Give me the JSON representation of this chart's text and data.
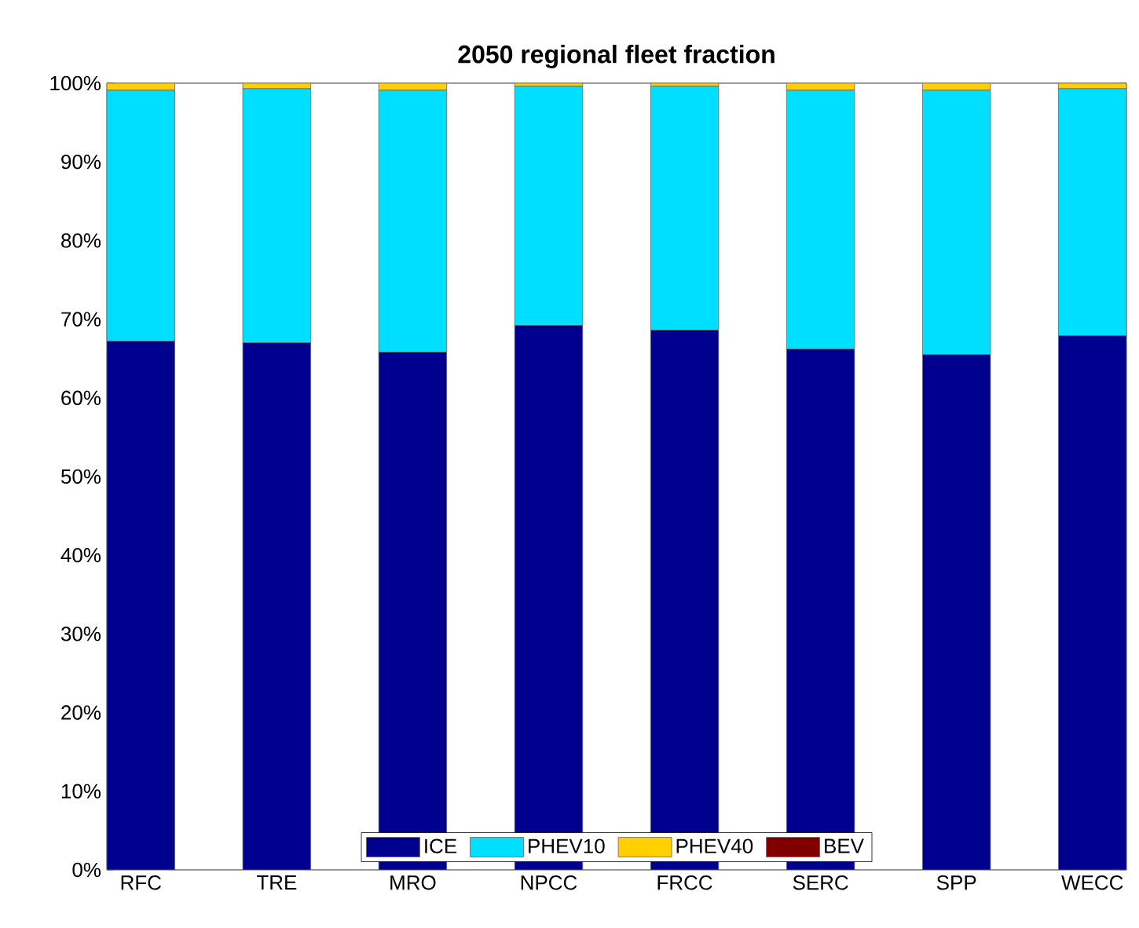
{
  "chart_data": {
    "type": "bar",
    "title": "2050 regional fleet fraction",
    "stacked": true,
    "categories": [
      "RFC",
      "TRE",
      "MRO",
      "NPCC",
      "FRCC",
      "SERC",
      "SPP",
      "WECC"
    ],
    "series": [
      {
        "name": "ICE",
        "color": "#00008f",
        "values": [
          67.2,
          67.0,
          65.8,
          69.2,
          68.6,
          66.2,
          65.5,
          67.9
        ]
      },
      {
        "name": "PHEV10",
        "color": "#00dfff",
        "values": [
          31.9,
          32.3,
          33.3,
          30.4,
          31.0,
          32.9,
          33.6,
          31.4
        ]
      },
      {
        "name": "PHEV40",
        "color": "#ffcf00",
        "values": [
          0.9,
          0.7,
          0.9,
          0.4,
          0.4,
          0.9,
          0.9,
          0.7
        ]
      },
      {
        "name": "BEV",
        "color": "#800000",
        "values": [
          0,
          0,
          0,
          0,
          0,
          0,
          0,
          0
        ]
      }
    ],
    "ylim": [
      0,
      100
    ],
    "yticks": [
      {
        "value": 0,
        "label": "0%"
      },
      {
        "value": 10,
        "label": "10%"
      },
      {
        "value": 20,
        "label": "20%"
      },
      {
        "value": 30,
        "label": "30%"
      },
      {
        "value": 40,
        "label": "40%"
      },
      {
        "value": 50,
        "label": "50%"
      },
      {
        "value": 60,
        "label": "60%"
      },
      {
        "value": 70,
        "label": "70%"
      },
      {
        "value": 80,
        "label": "80%"
      },
      {
        "value": 90,
        "label": "90%"
      },
      {
        "value": 100,
        "label": "100%"
      }
    ],
    "legend": "bottom"
  }
}
